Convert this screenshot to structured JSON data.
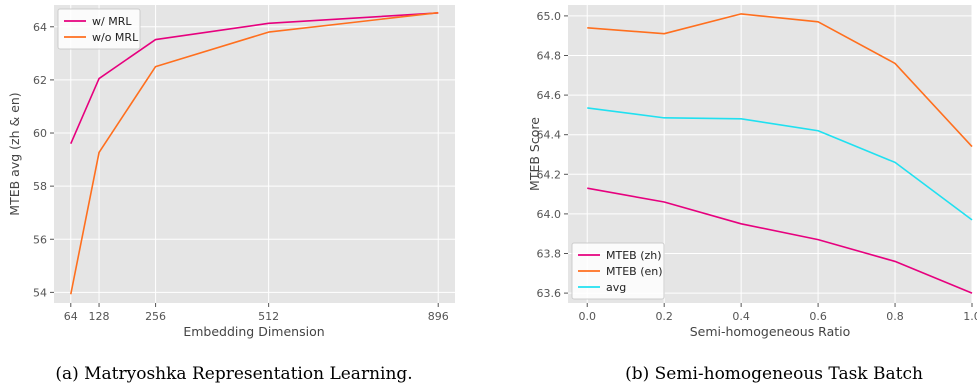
{
  "chart_data": [
    {
      "type": "line",
      "xlabel": "Embedding Dimension",
      "ylabel": "MTEB avg (zh & en)",
      "caption": "(a) Matryoshka Representation Learning.",
      "x": [
        64,
        128,
        256,
        512,
        896
      ],
      "xticks": [
        64,
        128,
        256,
        512,
        896
      ],
      "yticks": [
        54,
        56,
        58,
        60,
        62,
        64
      ],
      "xlim": [
        26,
        934
      ],
      "ylim": [
        53.6,
        64.82
      ],
      "grid": true,
      "legend": "top-left",
      "series": [
        {
          "name": "w/ MRL",
          "color": "#e6007e",
          "values": [
            59.6,
            62.05,
            63.52,
            64.13,
            64.52
          ]
        },
        {
          "name": "w/o MRL",
          "color": "#ff6f1e",
          "values": [
            53.93,
            59.27,
            62.5,
            63.8,
            64.53
          ]
        }
      ]
    },
    {
      "type": "line",
      "xlabel": "Semi-homogeneous Ratio",
      "ylabel": "MTEB Score",
      "caption": "(b) Semi-homogeneous Task Batch",
      "x": [
        0.0,
        0.2,
        0.4,
        0.6,
        0.8,
        1.0
      ],
      "xticks": [
        "0.0",
        "0.2",
        "0.4",
        "0.6",
        "0.8",
        "1.0"
      ],
      "yticks": [
        "63.6",
        "63.8",
        "64.0",
        "64.2",
        "64.4",
        "64.6",
        "64.8",
        "65.0"
      ],
      "xlim": [
        -0.05,
        1.0
      ],
      "ylim": [
        63.55,
        65.055
      ],
      "grid": true,
      "legend": "bottom-left",
      "series": [
        {
          "name": "MTEB (zh)",
          "color": "#e6007e",
          "values": [
            64.13,
            64.06,
            63.95,
            63.87,
            63.76,
            63.6
          ]
        },
        {
          "name": "MTEB (en)",
          "color": "#ff6f1e",
          "values": [
            64.94,
            64.91,
            65.01,
            64.97,
            64.76,
            64.34
          ]
        },
        {
          "name": "avg",
          "color": "#20e0f0",
          "values": [
            64.535,
            64.485,
            64.48,
            64.42,
            64.26,
            63.97
          ]
        }
      ]
    }
  ]
}
